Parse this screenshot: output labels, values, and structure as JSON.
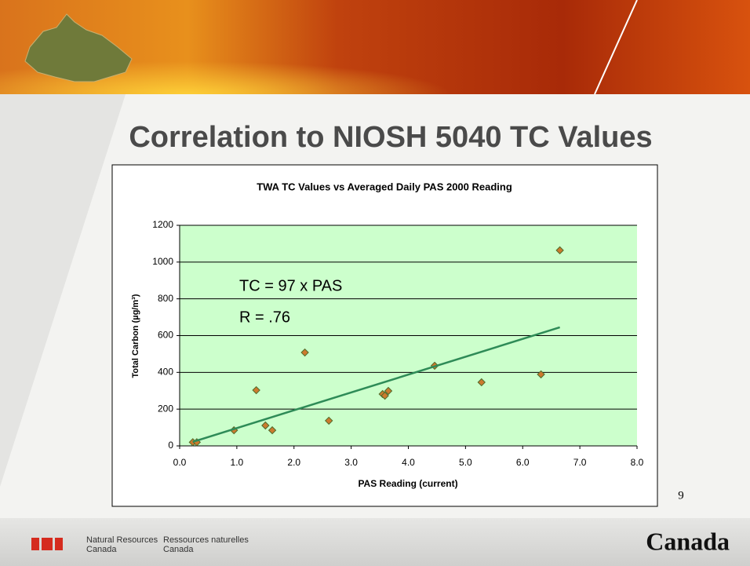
{
  "slide_title": "Correlation to NIOSH 5040 TC Values",
  "page_number": "9",
  "footer": {
    "english": [
      "Natural Resources",
      "Canada"
    ],
    "french": [
      "Ressources naturelles",
      "Canada"
    ],
    "wordmark": "Canada"
  },
  "chart_data": {
    "type": "scatter",
    "title": "TWA TC Values vs Averaged Daily PAS 2000 Reading",
    "x_label": "PAS Reading (current)",
    "y_label": "Total Carbon (µg/m³)",
    "annotations": [
      "TC = 97 x PAS",
      "R = .76"
    ],
    "xlim": [
      0,
      8
    ],
    "ylim": [
      0,
      1200
    ],
    "xticks": [
      {
        "value": 0,
        "label": "0.0"
      },
      {
        "value": 1,
        "label": "1.0"
      },
      {
        "value": 2,
        "label": "2.0"
      },
      {
        "value": 3,
        "label": "3.0"
      },
      {
        "value": 4,
        "label": "4.0"
      },
      {
        "value": 5,
        "label": "5.0"
      },
      {
        "value": 6,
        "label": "6.0"
      },
      {
        "value": 7,
        "label": "7.0"
      },
      {
        "value": 8,
        "label": "8.0"
      }
    ],
    "yticks": [
      0,
      200,
      400,
      600,
      800,
      1000,
      1200
    ],
    "grid": true,
    "plot_background": "#ccffcc",
    "series": [
      {
        "color": "#cc7a2e",
        "marker": "diamond",
        "x": [
          0.23,
          0.3,
          0.95,
          1.34,
          1.5,
          1.62,
          2.19,
          2.61,
          3.55,
          3.59,
          3.65,
          4.46,
          5.28,
          6.32,
          6.65
        ],
        "values": [
          20,
          20,
          85,
          303,
          111,
          85,
          508,
          137,
          282,
          273,
          299,
          436,
          346,
          389,
          1064
        ]
      },
      {
        "color": "#2e8b57",
        "marker": "line",
        "x": [
          0.23,
          6.65
        ],
        "values": [
          22,
          645
        ]
      }
    ]
  }
}
